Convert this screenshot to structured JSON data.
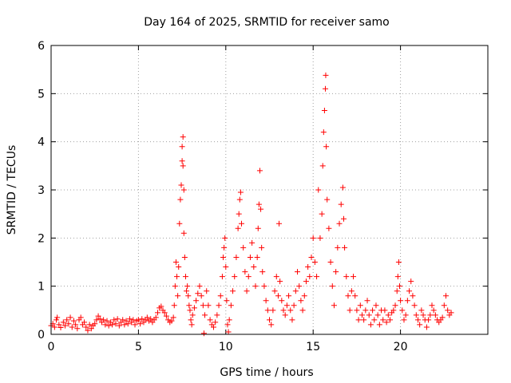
{
  "chart_data": {
    "type": "scatter",
    "title": "Day 164 of 2025, SRMTID for receiver samo",
    "xlabel": "GPS time / hours",
    "ylabel": "SRMTID / TECUs",
    "xlim": [
      0,
      25
    ],
    "ylim": [
      0,
      6
    ],
    "xticks": [
      0,
      5,
      10,
      15,
      20
    ],
    "yticks": [
      0,
      1,
      2,
      3,
      4,
      5,
      6
    ],
    "grid": true,
    "marker": "plus",
    "color": "#ff0000",
    "series": [
      {
        "name": "SRMTID",
        "points": [
          [
            0.0,
            0.18
          ],
          [
            0.1,
            0.22
          ],
          [
            0.2,
            0.15
          ],
          [
            0.3,
            0.3
          ],
          [
            0.35,
            0.35
          ],
          [
            0.45,
            0.2
          ],
          [
            0.55,
            0.14
          ],
          [
            0.7,
            0.25
          ],
          [
            0.8,
            0.18
          ],
          [
            0.9,
            0.3
          ],
          [
            1.0,
            0.22
          ],
          [
            1.1,
            0.35
          ],
          [
            1.2,
            0.15
          ],
          [
            1.3,
            0.28
          ],
          [
            1.4,
            0.2
          ],
          [
            1.5,
            0.12
          ],
          [
            1.6,
            0.3
          ],
          [
            1.7,
            0.35
          ],
          [
            1.8,
            0.2
          ],
          [
            1.9,
            0.25
          ],
          [
            2.0,
            0.15
          ],
          [
            2.1,
            0.08
          ],
          [
            2.2,
            0.2
          ],
          [
            2.3,
            0.12
          ],
          [
            2.4,
            0.18
          ],
          [
            2.5,
            0.22
          ],
          [
            2.6,
            0.3
          ],
          [
            2.7,
            0.38
          ],
          [
            2.8,
            0.32
          ],
          [
            2.9,
            0.25
          ],
          [
            3.0,
            0.3
          ],
          [
            3.1,
            0.2
          ],
          [
            3.2,
            0.28
          ],
          [
            3.3,
            0.18
          ],
          [
            3.4,
            0.25
          ],
          [
            3.5,
            0.2
          ],
          [
            3.6,
            0.3
          ],
          [
            3.7,
            0.22
          ],
          [
            3.8,
            0.32
          ],
          [
            3.9,
            0.18
          ],
          [
            4.0,
            0.25
          ],
          [
            4.1,
            0.3
          ],
          [
            4.2,
            0.2
          ],
          [
            4.3,
            0.28
          ],
          [
            4.4,
            0.22
          ],
          [
            4.5,
            0.32
          ],
          [
            4.6,
            0.25
          ],
          [
            4.7,
            0.3
          ],
          [
            4.8,
            0.2
          ],
          [
            4.9,
            0.28
          ],
          [
            5.0,
            0.3
          ],
          [
            5.1,
            0.22
          ],
          [
            5.2,
            0.32
          ],
          [
            5.3,
            0.25
          ],
          [
            5.4,
            0.3
          ],
          [
            5.5,
            0.35
          ],
          [
            5.6,
            0.28
          ],
          [
            5.7,
            0.32
          ],
          [
            5.8,
            0.25
          ],
          [
            5.9,
            0.3
          ],
          [
            6.0,
            0.35
          ],
          [
            6.1,
            0.45
          ],
          [
            6.2,
            0.55
          ],
          [
            6.3,
            0.58
          ],
          [
            6.4,
            0.5
          ],
          [
            6.5,
            0.45
          ],
          [
            6.6,
            0.38
          ],
          [
            6.7,
            0.3
          ],
          [
            6.8,
            0.25
          ],
          [
            6.9,
            0.28
          ],
          [
            7.0,
            0.35
          ],
          [
            7.05,
            0.6
          ],
          [
            7.1,
            1.0
          ],
          [
            7.15,
            1.5
          ],
          [
            7.2,
            1.2
          ],
          [
            7.25,
            0.8
          ],
          [
            7.3,
            1.4
          ],
          [
            7.35,
            2.3
          ],
          [
            7.4,
            2.8
          ],
          [
            7.45,
            3.1
          ],
          [
            7.5,
            3.6
          ],
          [
            7.5,
            3.9
          ],
          [
            7.55,
            4.1
          ],
          [
            7.55,
            3.5
          ],
          [
            7.6,
            3.0
          ],
          [
            7.6,
            2.1
          ],
          [
            7.65,
            1.6
          ],
          [
            7.7,
            1.2
          ],
          [
            7.75,
            0.9
          ],
          [
            7.8,
            1.0
          ],
          [
            7.85,
            0.8
          ],
          [
            7.9,
            0.6
          ],
          [
            7.95,
            0.5
          ],
          [
            8.0,
            0.3
          ],
          [
            8.05,
            0.2
          ],
          [
            8.1,
            0.4
          ],
          [
            8.2,
            0.55
          ],
          [
            8.3,
            0.7
          ],
          [
            8.4,
            0.85
          ],
          [
            8.5,
            1.0
          ],
          [
            8.6,
            0.8
          ],
          [
            8.7,
            0.6
          ],
          [
            8.75,
            0.02
          ],
          [
            8.8,
            0.4
          ],
          [
            8.9,
            0.9
          ],
          [
            9.0,
            0.6
          ],
          [
            9.1,
            0.3
          ],
          [
            9.2,
            0.2
          ],
          [
            9.3,
            0.15
          ],
          [
            9.4,
            0.25
          ],
          [
            9.5,
            0.4
          ],
          [
            9.6,
            0.6
          ],
          [
            9.7,
            0.8
          ],
          [
            9.8,
            1.2
          ],
          [
            9.85,
            1.6
          ],
          [
            9.9,
            1.8
          ],
          [
            9.95,
            2.0
          ],
          [
            10.0,
            1.4
          ],
          [
            10.05,
            0.7
          ],
          [
            10.1,
            0.2
          ],
          [
            10.15,
            0.05
          ],
          [
            10.2,
            0.3
          ],
          [
            10.3,
            0.6
          ],
          [
            10.4,
            0.9
          ],
          [
            10.5,
            1.2
          ],
          [
            10.6,
            1.6
          ],
          [
            10.7,
            2.2
          ],
          [
            10.75,
            2.5
          ],
          [
            10.8,
            2.8
          ],
          [
            10.85,
            2.95
          ],
          [
            10.9,
            2.3
          ],
          [
            11.0,
            1.8
          ],
          [
            11.1,
            1.3
          ],
          [
            11.2,
            0.9
          ],
          [
            11.3,
            1.2
          ],
          [
            11.4,
            1.6
          ],
          [
            11.5,
            1.9
          ],
          [
            11.6,
            1.4
          ],
          [
            11.7,
            1.0
          ],
          [
            11.8,
            1.6
          ],
          [
            11.85,
            2.2
          ],
          [
            11.9,
            2.7
          ],
          [
            11.95,
            3.4
          ],
          [
            12.0,
            2.6
          ],
          [
            12.05,
            1.8
          ],
          [
            12.1,
            1.3
          ],
          [
            12.2,
            1.0
          ],
          [
            12.3,
            0.7
          ],
          [
            12.4,
            0.5
          ],
          [
            12.5,
            0.3
          ],
          [
            12.6,
            0.2
          ],
          [
            12.7,
            0.5
          ],
          [
            12.8,
            0.9
          ],
          [
            12.9,
            1.2
          ],
          [
            13.0,
            0.8
          ],
          [
            13.05,
            2.3
          ],
          [
            13.1,
            1.1
          ],
          [
            13.2,
            0.7
          ],
          [
            13.3,
            0.5
          ],
          [
            13.4,
            0.4
          ],
          [
            13.5,
            0.6
          ],
          [
            13.6,
            0.8
          ],
          [
            13.7,
            0.5
          ],
          [
            13.8,
            0.3
          ],
          [
            13.9,
            0.6
          ],
          [
            14.0,
            0.9
          ],
          [
            14.1,
            1.3
          ],
          [
            14.2,
            1.0
          ],
          [
            14.3,
            0.7
          ],
          [
            14.4,
            0.5
          ],
          [
            14.5,
            0.8
          ],
          [
            14.6,
            1.1
          ],
          [
            14.7,
            1.4
          ],
          [
            14.8,
            1.2
          ],
          [
            14.9,
            1.6
          ],
          [
            15.0,
            2.0
          ],
          [
            15.1,
            1.5
          ],
          [
            15.2,
            1.2
          ],
          [
            15.3,
            3.0
          ],
          [
            15.4,
            2.0
          ],
          [
            15.5,
            2.5
          ],
          [
            15.55,
            3.5
          ],
          [
            15.6,
            4.2
          ],
          [
            15.65,
            4.65
          ],
          [
            15.7,
            5.1
          ],
          [
            15.72,
            5.38
          ],
          [
            15.75,
            3.9
          ],
          [
            15.8,
            2.8
          ],
          [
            15.9,
            2.2
          ],
          [
            16.0,
            1.5
          ],
          [
            16.1,
            1.0
          ],
          [
            16.2,
            0.6
          ],
          [
            16.3,
            1.3
          ],
          [
            16.4,
            1.8
          ],
          [
            16.5,
            2.3
          ],
          [
            16.6,
            2.7
          ],
          [
            16.7,
            3.05
          ],
          [
            16.75,
            2.4
          ],
          [
            16.8,
            1.8
          ],
          [
            16.9,
            1.2
          ],
          [
            17.0,
            0.8
          ],
          [
            17.1,
            0.5
          ],
          [
            17.2,
            0.9
          ],
          [
            17.3,
            1.2
          ],
          [
            17.4,
            0.8
          ],
          [
            17.5,
            0.5
          ],
          [
            17.6,
            0.3
          ],
          [
            17.7,
            0.6
          ],
          [
            17.8,
            0.4
          ],
          [
            17.9,
            0.3
          ],
          [
            18.0,
            0.5
          ],
          [
            18.1,
            0.7
          ],
          [
            18.2,
            0.4
          ],
          [
            18.3,
            0.2
          ],
          [
            18.4,
            0.5
          ],
          [
            18.5,
            0.3
          ],
          [
            18.6,
            0.6
          ],
          [
            18.7,
            0.4
          ],
          [
            18.8,
            0.2
          ],
          [
            18.9,
            0.5
          ],
          [
            19.0,
            0.3
          ],
          [
            19.1,
            0.5
          ],
          [
            19.2,
            0.25
          ],
          [
            19.3,
            0.4
          ],
          [
            19.4,
            0.3
          ],
          [
            19.5,
            0.45
          ],
          [
            19.6,
            0.5
          ],
          [
            19.7,
            0.6
          ],
          [
            19.8,
            0.9
          ],
          [
            19.85,
            1.2
          ],
          [
            19.9,
            1.5
          ],
          [
            19.95,
            1.0
          ],
          [
            20.0,
            0.7
          ],
          [
            20.1,
            0.5
          ],
          [
            20.2,
            0.3
          ],
          [
            20.3,
            0.4
          ],
          [
            20.4,
            0.7
          ],
          [
            20.5,
            0.9
          ],
          [
            20.6,
            1.1
          ],
          [
            20.7,
            0.8
          ],
          [
            20.8,
            0.6
          ],
          [
            20.9,
            0.4
          ],
          [
            21.0,
            0.3
          ],
          [
            21.1,
            0.2
          ],
          [
            21.2,
            0.5
          ],
          [
            21.3,
            0.4
          ],
          [
            21.4,
            0.3
          ],
          [
            21.5,
            0.15
          ],
          [
            21.6,
            0.3
          ],
          [
            21.7,
            0.4
          ],
          [
            21.8,
            0.6
          ],
          [
            21.9,
            0.5
          ],
          [
            22.0,
            0.4
          ],
          [
            22.1,
            0.3
          ],
          [
            22.2,
            0.25
          ],
          [
            22.3,
            0.3
          ],
          [
            22.4,
            0.35
          ],
          [
            22.5,
            0.6
          ],
          [
            22.6,
            0.8
          ],
          [
            22.7,
            0.5
          ],
          [
            22.8,
            0.4
          ],
          [
            22.9,
            0.45
          ]
        ]
      }
    ]
  }
}
